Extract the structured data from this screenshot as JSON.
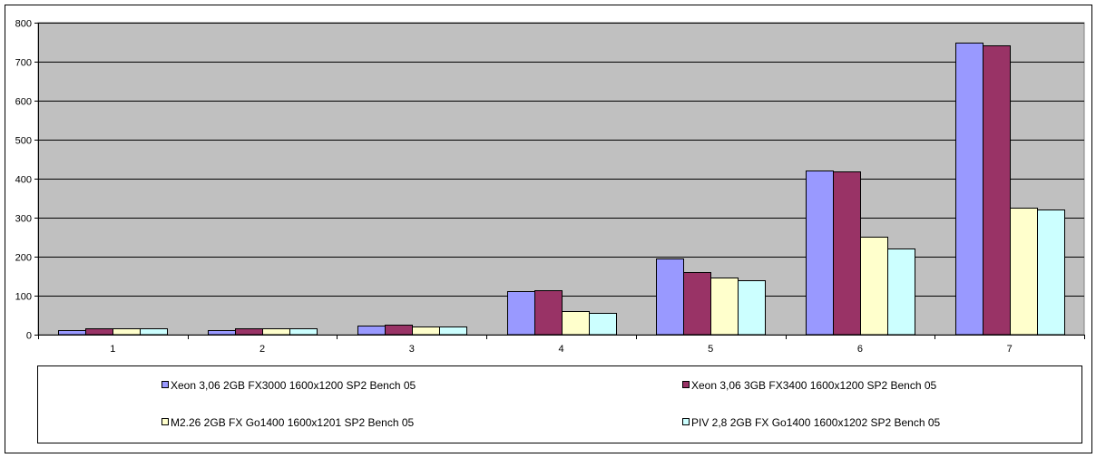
{
  "chart_data": {
    "type": "bar",
    "title": "",
    "xlabel": "",
    "ylabel": "",
    "categories": [
      "1",
      "2",
      "3",
      "4",
      "5",
      "6",
      "7"
    ],
    "ylim": [
      0,
      800
    ],
    "yticks": [
      0,
      100,
      200,
      300,
      400,
      500,
      600,
      700,
      800
    ],
    "grid": true,
    "legend_position": "bottom",
    "plot_background": "#C0C0C0",
    "series": [
      {
        "name": "Xeon 3,06 2GB FX3000 1600x1200 SP2 Bench 05",
        "color": "#9999FF",
        "values": [
          12,
          12,
          24,
          112,
          195,
          420,
          748
        ]
      },
      {
        "name": "Xeon 3,06 3GB FX3400 1600x1200 SP2 Bench 05",
        "color": "#993366",
        "values": [
          17,
          17,
          26,
          114,
          160,
          418,
          742
        ]
      },
      {
        "name": "M2.26 2GB FX Go1400 1600x1201 SP2 Bench 05",
        "color": "#FFFFCC",
        "values": [
          17,
          17,
          20,
          61,
          147,
          252,
          326
        ]
      },
      {
        "name": "PIV 2,8 2GB FX Go1400 1600x1202 SP2 Bench 05",
        "color": "#CCFFFF",
        "values": [
          17,
          17,
          20,
          56,
          140,
          222,
          320
        ]
      }
    ]
  }
}
